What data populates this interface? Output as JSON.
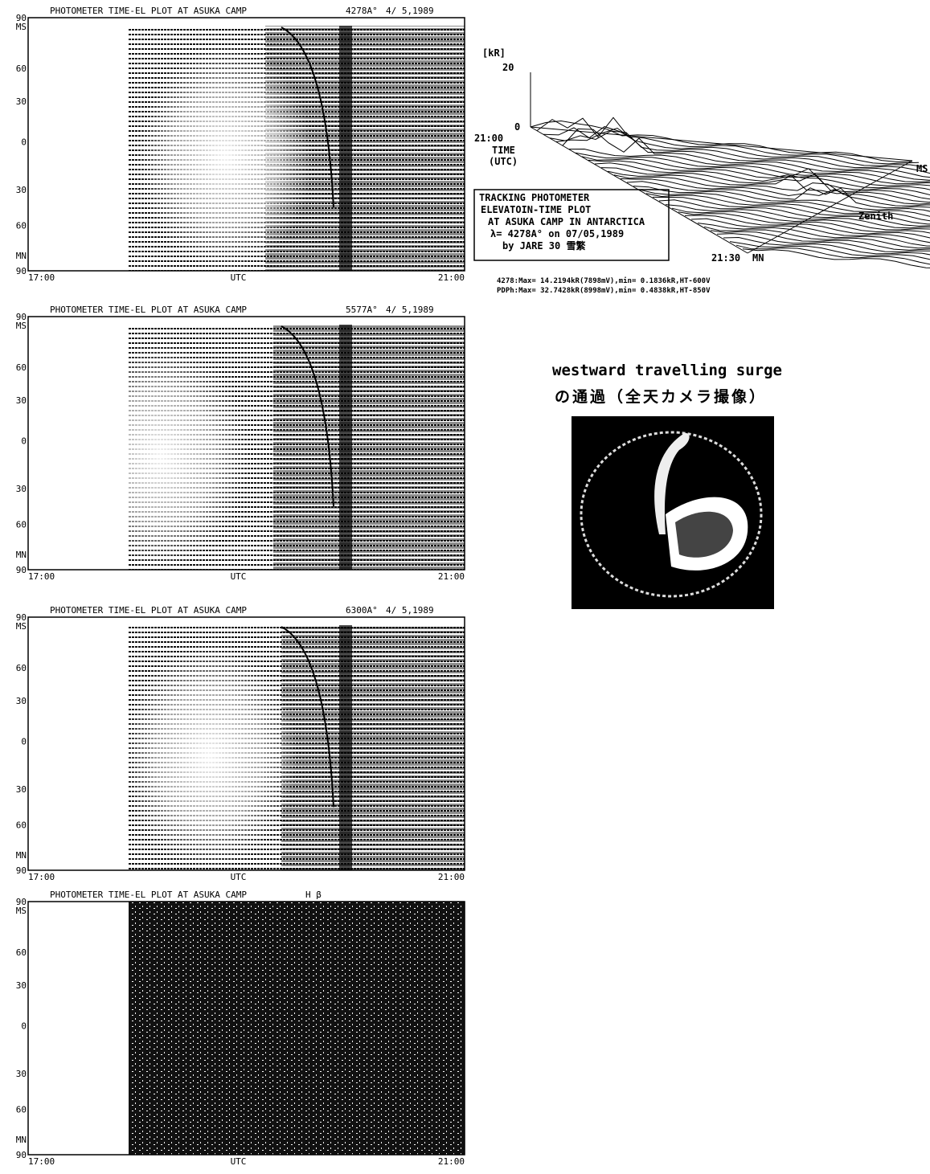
{
  "panels": [
    {
      "title": "PHOTOMETER TIME-EL PLOT AT ASUKA CAMP",
      "wavelength": "4278A°",
      "date": "4/ 5,1989",
      "y_labels": [
        "90",
        "MS",
        "60",
        "30",
        "0",
        "30",
        "60",
        "MN",
        "90"
      ],
      "x_labels": [
        "17:00",
        "UTC",
        "21:00"
      ]
    },
    {
      "title": "PHOTOMETER TIME-EL PLOT AT ASUKA CAMP",
      "wavelength": "5577A°",
      "date": "4/ 5,1989",
      "y_labels": [
        "90",
        "MS",
        "60",
        "30",
        "0",
        "30",
        "60",
        "MN",
        "90"
      ],
      "x_labels": [
        "17:00",
        "UTC",
        "21:00"
      ]
    },
    {
      "title": "PHOTOMETER TIME-EL PLOT AT ASUKA CAMP",
      "wavelength": "6300A°",
      "date": "4/ 5,1989",
      "y_labels": [
        "90",
        "MS",
        "60",
        "30",
        "0",
        "30",
        "60",
        "MN",
        "90"
      ],
      "x_labels": [
        "17:00",
        "UTC",
        "21:00"
      ]
    },
    {
      "title": "PHOTOMETER TIME-EL PLOT AT ASUKA CAMP",
      "wavelength": "H β",
      "date": "",
      "y_labels": [
        "90",
        "MS",
        "60",
        "30",
        "0",
        "30",
        "60",
        "MN",
        "90"
      ],
      "x_labels": [
        "17:00",
        "UTC",
        "21:00"
      ]
    }
  ],
  "plot3d": {
    "unit": "[kR]",
    "z_labels": [
      "20",
      "0"
    ],
    "time_start": "21:00",
    "time_label": "TIME",
    "time_unit": "(UTC)",
    "time_end": "21:30",
    "ms": "MS",
    "zenith": "Zenith",
    "mn": "MN",
    "box": [
      "TRACKING PHOTOMETER",
      "ELEVATOIN-TIME PLOT",
      "AT ASUKA CAMP IN ANTARCTICA",
      "λ= 4278A°   on 07/05,1989",
      "by JARE 30 雪繁"
    ],
    "stats": [
      "4278:Max= 14.2194kR(7898mV),min=  0.1836kR,HT-600V",
      "PDPh:Max= 32.7428kR(8998mV),min=  0.4838kR,HT-850V"
    ]
  },
  "caption": {
    "line1": "westward travelling surge",
    "line2": "の通過（全天カメラ撮像）"
  }
}
